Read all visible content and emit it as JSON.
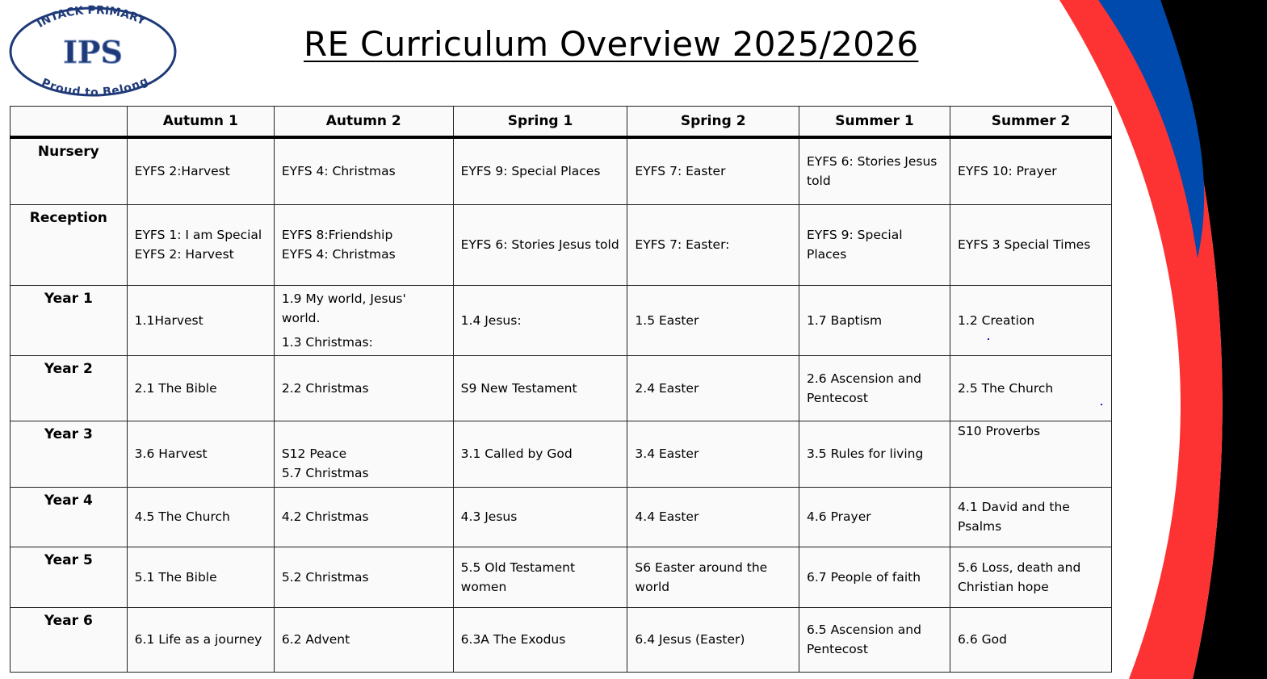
{
  "logo": {
    "top_text": "INTACK PRIMARY",
    "initials": "IPS",
    "bottom_text": "Proud to Belong",
    "color": "#1f3a78"
  },
  "title": "RE Curriculum Overview 2025/2026",
  "colors": {
    "red": "#fd3333",
    "blue": "#004aad",
    "black": "#000000"
  },
  "table": {
    "corner": "",
    "columns": [
      "Autumn 1",
      "Autumn 2",
      "Spring 1",
      "Spring 2",
      "Summer 1",
      "Summer 2"
    ],
    "rows": [
      {
        "label": "Nursery",
        "cells": [
          [
            "EYFS 2:Harvest"
          ],
          [
            "EYFS 4: Christmas"
          ],
          [
            "EYFS 9: Special Places"
          ],
          [
            "EYFS 7: Easter"
          ],
          [
            "EYFS 6: Stories Jesus told"
          ],
          [
            "EYFS 10: Prayer"
          ]
        ]
      },
      {
        "label": "Reception",
        "cells": [
          [
            "EYFS 1: I am Special",
            "EYFS 2: Harvest"
          ],
          [
            "EYFS 8:Friendship",
            "EYFS 4: Christmas"
          ],
          [
            "EYFS 6: Stories Jesus told"
          ],
          [
            "EYFS 7: Easter:"
          ],
          [
            "EYFS 9: Special Places"
          ],
          [
            "EYFS 3 Special Times"
          ]
        ]
      },
      {
        "label": "Year 1",
        "cells": [
          [
            "1.1Harvest"
          ],
          [
            "1.9 My world, Jesus' world.",
            "1.3 Christmas:"
          ],
          [
            "1.4 Jesus:"
          ],
          [
            "1.5 Easter"
          ],
          [
            "1.7 Baptism"
          ],
          [
            "1.2 Creation"
          ]
        ]
      },
      {
        "label": "Year 2",
        "cells": [
          [
            "2.1 The Bible"
          ],
          [
            "2.2 Christmas"
          ],
          [
            "S9 New Testament"
          ],
          [
            "2.4 Easter"
          ],
          [
            "2.6 Ascension and Pentecost"
          ],
          [
            "2.5 The Church"
          ]
        ]
      },
      {
        "label": "Year 3",
        "cells": [
          [
            "3.6 Harvest"
          ],
          [
            "S12 Peace",
            "5.7 Christmas"
          ],
          [
            "3.1 Called by God"
          ],
          [
            "3.4 Easter"
          ],
          [
            "3.5 Rules for living"
          ],
          [
            "S10 Proverbs"
          ]
        ]
      },
      {
        "label": "Year 4",
        "cells": [
          [
            "4.5 The Church"
          ],
          [
            "4.2 Christmas"
          ],
          [
            "4.3 Jesus"
          ],
          [
            "4.4 Easter"
          ],
          [
            "4.6 Prayer"
          ],
          [
            "4.1 David and the Psalms"
          ]
        ]
      },
      {
        "label": "Year 5",
        "cells": [
          [
            "5.1 The Bible"
          ],
          [
            "5.2 Christmas"
          ],
          [
            "5.5 Old Testament women"
          ],
          [
            "S6 Easter around the world"
          ],
          [
            "6.7 People of faith"
          ],
          [
            "5.6 Loss, death and Christian hope"
          ]
        ]
      },
      {
        "label": "Year 6",
        "cells": [
          [
            "6.1 Life as a journey"
          ],
          [
            "6.2 Advent"
          ],
          [
            "6.3A The Exodus"
          ],
          [
            "6.4 Jesus (Easter)"
          ],
          [
            "6.5 Ascension and Pentecost"
          ],
          [
            "6.6 God"
          ]
        ]
      }
    ]
  }
}
